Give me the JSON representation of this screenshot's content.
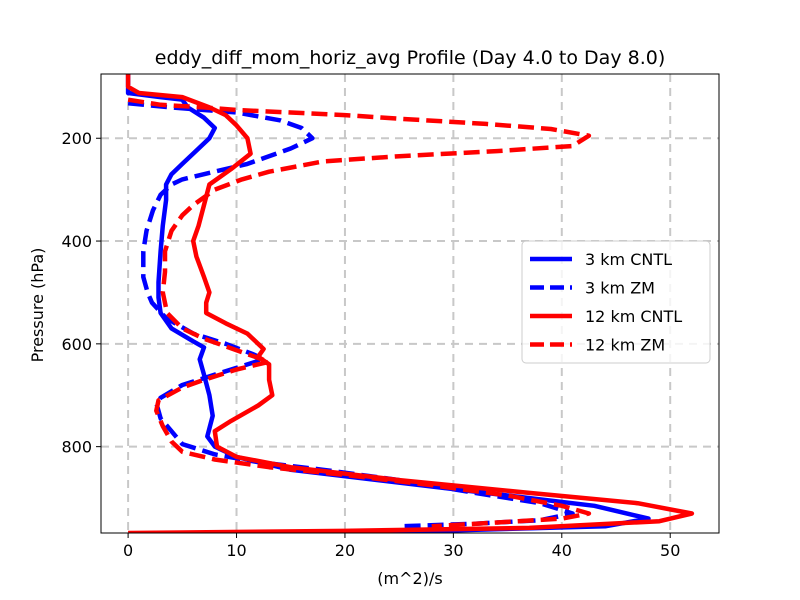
{
  "chart_data": {
    "type": "line",
    "title": "eddy_diff_mom_horiz_avg Profile (Day 4.0 to Day 8.0)",
    "xlabel": "(m^2)/s",
    "ylabel": "Pressure (hPa)",
    "xlim": [
      -2.5,
      54.5
    ],
    "ylim": [
      968,
      75
    ],
    "y_inverted": true,
    "grid": true,
    "legend_position": "center-right",
    "xticks": [
      0,
      10,
      20,
      30,
      40,
      50
    ],
    "xtick_labels": [
      "0",
      "10",
      "20",
      "30",
      "40",
      "50"
    ],
    "yticks": [
      200,
      400,
      600,
      800
    ],
    "ytick_labels": [
      "200",
      "400",
      "600",
      "800"
    ],
    "series": [
      {
        "name": "3 km CNTL",
        "color": "#0000ff",
        "linestyle": "solid",
        "points": [
          [
            0,
            75
          ],
          [
            0,
            112
          ],
          [
            3,
            120
          ],
          [
            5,
            125
          ],
          [
            5.5,
            140
          ],
          [
            7,
            160
          ],
          [
            8,
            180
          ],
          [
            7.5,
            200
          ],
          [
            6.5,
            220
          ],
          [
            5,
            250
          ],
          [
            4,
            270
          ],
          [
            3.5,
            290
          ],
          [
            3.5,
            320
          ],
          [
            3.2,
            370
          ],
          [
            3,
            420
          ],
          [
            2.8,
            480
          ],
          [
            2.8,
            510
          ],
          [
            3,
            540
          ],
          [
            4,
            570
          ],
          [
            6,
            595
          ],
          [
            7,
            607
          ],
          [
            6.6,
            630
          ],
          [
            7,
            660
          ],
          [
            7.5,
            700
          ],
          [
            7.8,
            740
          ],
          [
            7.3,
            780
          ],
          [
            8,
            800
          ],
          [
            10,
            820
          ],
          [
            15,
            845
          ],
          [
            25,
            870
          ],
          [
            35,
            895
          ],
          [
            43,
            915
          ],
          [
            48,
            940
          ],
          [
            44,
            955
          ],
          [
            30,
            963
          ],
          [
            15,
            966
          ],
          [
            5,
            968
          ]
        ]
      },
      {
        "name": "3 km ZM",
        "color": "#0000ff",
        "linestyle": "dashed",
        "points": [
          [
            0,
            132
          ],
          [
            4,
            140
          ],
          [
            7,
            145
          ],
          [
            10,
            150
          ],
          [
            14,
            165
          ],
          [
            16,
            180
          ],
          [
            17,
            200
          ],
          [
            15,
            220
          ],
          [
            11,
            250
          ],
          [
            7,
            270
          ],
          [
            5,
            280
          ],
          [
            4,
            290
          ],
          [
            3,
            310
          ],
          [
            2.3,
            340
          ],
          [
            1.7,
            380
          ],
          [
            1.4,
            420
          ],
          [
            1.4,
            470
          ],
          [
            1.8,
            500
          ],
          [
            2.2,
            520
          ],
          [
            3.5,
            550
          ],
          [
            6,
            580
          ],
          [
            9,
            600
          ],
          [
            11.5,
            620
          ],
          [
            12.5,
            630
          ],
          [
            8,
            660
          ],
          [
            5,
            680
          ],
          [
            3,
            705
          ],
          [
            2.6,
            715
          ],
          [
            3,
            745
          ],
          [
            4,
            770
          ],
          [
            5,
            795
          ],
          [
            8,
            815
          ],
          [
            12,
            830
          ],
          [
            18,
            845
          ],
          [
            25,
            865
          ],
          [
            32,
            890
          ],
          [
            38,
            910
          ],
          [
            41,
            930
          ],
          [
            38,
            943
          ],
          [
            32,
            950
          ],
          [
            25,
            955
          ]
        ]
      },
      {
        "name": "12 km CNTL",
        "color": "#ff0000",
        "linestyle": "solid",
        "points": [
          [
            0,
            75
          ],
          [
            0,
            100
          ],
          [
            1,
            112
          ],
          [
            5,
            120
          ],
          [
            7.5,
            140
          ],
          [
            9,
            155
          ],
          [
            10,
            175
          ],
          [
            11,
            200
          ],
          [
            11.3,
            230
          ],
          [
            9.5,
            260
          ],
          [
            7.5,
            290
          ],
          [
            7,
            330
          ],
          [
            6.5,
            370
          ],
          [
            6,
            400
          ],
          [
            6.3,
            430
          ],
          [
            7,
            470
          ],
          [
            7.5,
            500
          ],
          [
            7.2,
            520
          ],
          [
            7.2,
            540
          ],
          [
            9,
            560
          ],
          [
            11,
            580
          ],
          [
            12.5,
            610
          ],
          [
            12,
            625
          ],
          [
            13,
            640
          ],
          [
            13,
            670
          ],
          [
            13.3,
            700
          ],
          [
            12,
            720
          ],
          [
            9.5,
            750
          ],
          [
            8,
            770
          ],
          [
            8.2,
            800
          ],
          [
            10,
            820
          ],
          [
            15,
            840
          ],
          [
            25,
            865
          ],
          [
            37,
            890
          ],
          [
            47,
            910
          ],
          [
            52,
            930
          ],
          [
            49,
            945
          ],
          [
            37,
            958
          ],
          [
            20,
            964
          ],
          [
            5,
            967
          ],
          [
            0,
            968
          ]
        ]
      },
      {
        "name": "12 km ZM",
        "color": "#ff0000",
        "linestyle": "dashed",
        "points": [
          [
            0,
            125
          ],
          [
            3,
            135
          ],
          [
            7,
            140
          ],
          [
            10,
            145
          ],
          [
            15,
            150
          ],
          [
            20,
            155
          ],
          [
            25,
            162
          ],
          [
            33,
            172
          ],
          [
            39,
            182
          ],
          [
            42.5,
            195
          ],
          [
            41,
            215
          ],
          [
            34,
            225
          ],
          [
            25,
            235
          ],
          [
            18,
            245
          ],
          [
            13,
            265
          ],
          [
            10.5,
            280
          ],
          [
            8,
            300
          ],
          [
            6,
            330
          ],
          [
            5,
            350
          ],
          [
            4,
            380
          ],
          [
            3.4,
            420
          ],
          [
            3.4,
            460
          ],
          [
            3.2,
            500
          ],
          [
            3.6,
            540
          ],
          [
            5,
            570
          ],
          [
            7,
            590
          ],
          [
            9,
            605
          ],
          [
            11,
            620
          ],
          [
            13,
            635
          ],
          [
            10,
            650
          ],
          [
            7,
            670
          ],
          [
            5,
            685
          ],
          [
            2.8,
            710
          ],
          [
            2.6,
            730
          ],
          [
            3.2,
            760
          ],
          [
            4,
            790
          ],
          [
            5,
            810
          ],
          [
            8,
            825
          ],
          [
            13,
            840
          ],
          [
            20,
            855
          ],
          [
            28,
            875
          ],
          [
            35,
            895
          ],
          [
            40,
            915
          ],
          [
            42.5,
            930
          ],
          [
            40,
            940
          ],
          [
            36,
            945
          ],
          [
            28,
            955
          ]
        ]
      }
    ]
  }
}
